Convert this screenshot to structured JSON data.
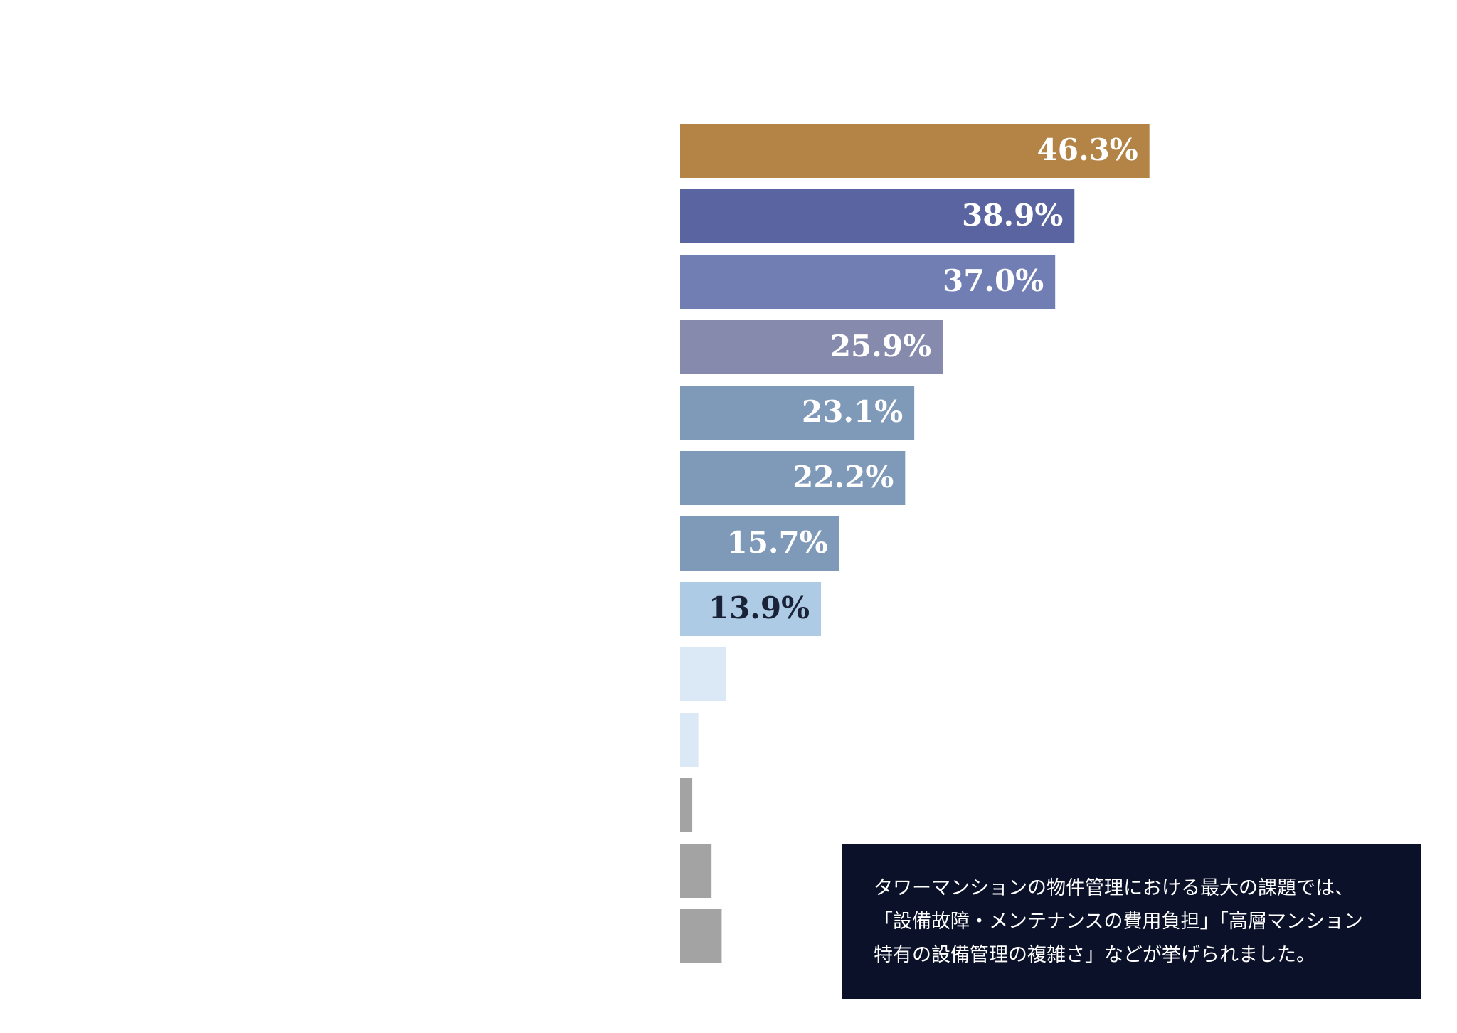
{
  "chart_data": {
    "type": "bar",
    "orientation": "horizontal",
    "categories": [
      null,
      null,
      null,
      null,
      null,
      null,
      null,
      null,
      null,
      null,
      null,
      null,
      null
    ],
    "values": [
      46.3,
      38.9,
      37.0,
      25.9,
      23.1,
      22.2,
      15.7,
      13.9,
      4.5,
      1.8,
      1.2,
      3.1,
      4.1
    ],
    "value_labels": [
      "46.3%",
      "38.9%",
      "37.0%",
      "25.9%",
      "23.1%",
      "22.2%",
      "15.7%",
      "13.9%",
      null,
      null,
      null,
      null,
      null
    ],
    "colors": [
      "#b38446",
      "#5964a0",
      "#717eb3",
      "#868bae",
      "#7f99b8",
      "#7f99b8",
      "#7f99b8",
      "#aecbe5",
      "#dbe8f5",
      "#dbe8f5",
      "#a3a3a3",
      "#a3a3a3",
      "#a3a3a3"
    ],
    "label_colors": [
      "#ffffff",
      "#ffffff",
      "#ffffff",
      "#ffffff",
      "#ffffff",
      "#ffffff",
      "#ffffff",
      "#1a2238",
      null,
      null,
      null,
      null,
      null
    ],
    "annotation": [
      "タワーマンションの物件管理における最大の課題では、",
      "「設備故障・メンテナンスの費用負担」「高層マンション",
      "特有の設備管理の複雑さ」などが挙げられました。"
    ]
  }
}
